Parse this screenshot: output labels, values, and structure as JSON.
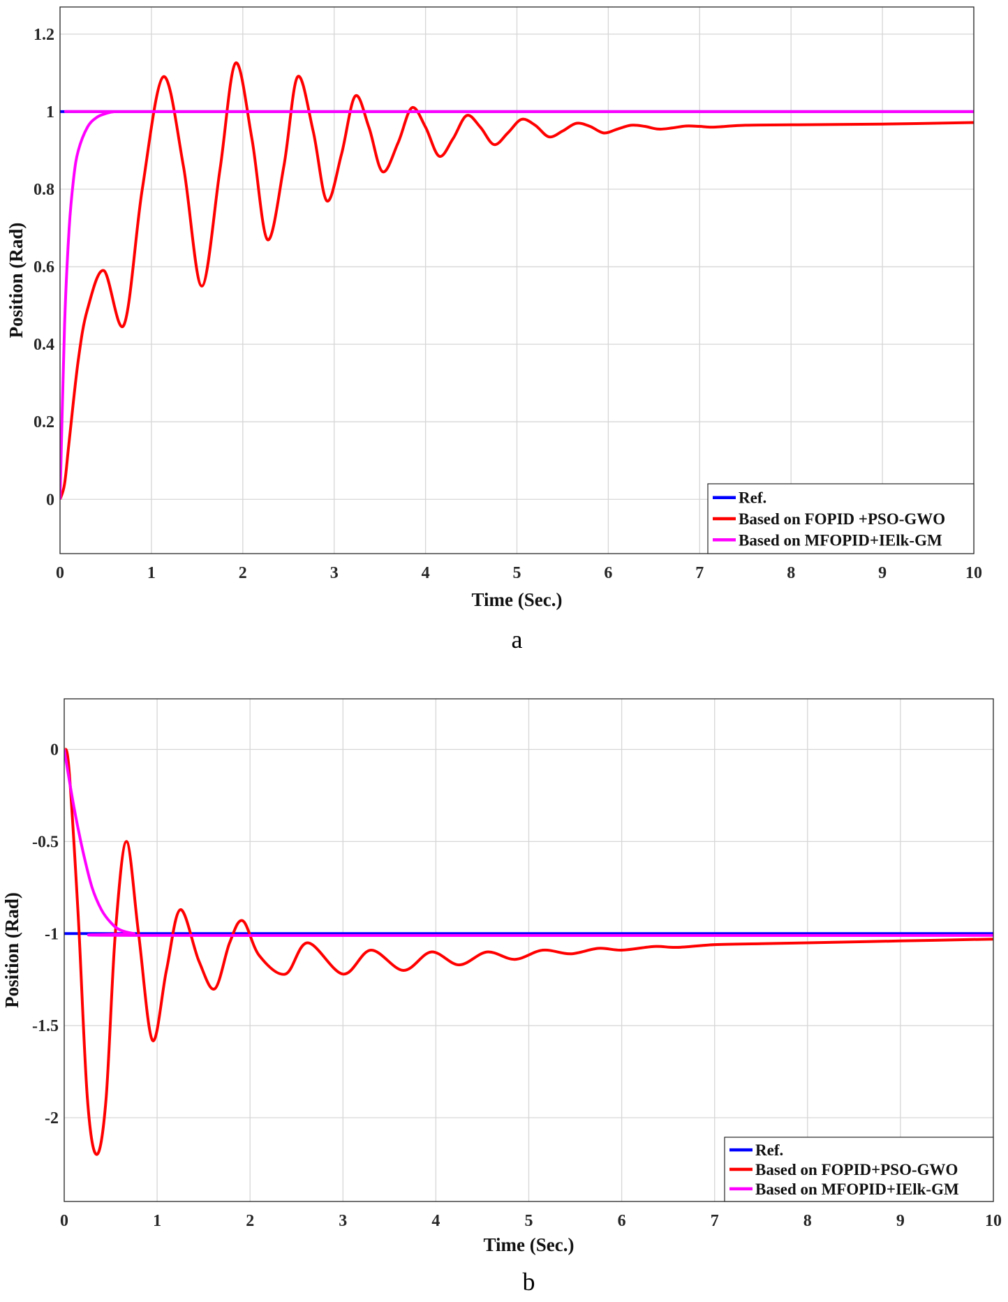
{
  "chart_data": [
    {
      "type": "line",
      "caption": "a",
      "xlabel": "Time (Sec.)",
      "ylabel": "Position (Rad)",
      "xlim": [
        0,
        10
      ],
      "ylim": [
        -0.14,
        1.27
      ],
      "xticks": [
        "0",
        "1",
        "2",
        "3",
        "4",
        "5",
        "6",
        "7",
        "8",
        "9",
        "10"
      ],
      "yticks": [
        "0",
        "0.2",
        "0.4",
        "0.6",
        "0.8",
        "1",
        "1.2"
      ],
      "grid": true,
      "legend_position": "bottom-right",
      "series": [
        {
          "name": "Ref.",
          "color": "#0000ff",
          "x": [
            0,
            10
          ],
          "y": [
            1,
            1
          ]
        },
        {
          "name": "Based on FOPID +PSO-GWO",
          "color": "#ff0000",
          "x": [
            0,
            0.05,
            0.1,
            0.2,
            0.3,
            0.48,
            0.7,
            0.9,
            1.13,
            1.35,
            1.55,
            1.75,
            1.92,
            2.1,
            2.27,
            2.45,
            2.6,
            2.77,
            2.92,
            3.08,
            3.23,
            3.38,
            3.53,
            3.7,
            3.85,
            4.0,
            4.15,
            4.3,
            4.45,
            4.6,
            4.75,
            4.9,
            5.05,
            5.2,
            5.35,
            5.5,
            5.65,
            5.8,
            5.95,
            6.1,
            6.25,
            6.4,
            6.55,
            6.7,
            6.85,
            7.0,
            7.15,
            7.5,
            8,
            9,
            10
          ],
          "y": [
            0,
            0.04,
            0.15,
            0.36,
            0.49,
            0.59,
            0.45,
            0.8,
            1.09,
            0.86,
            0.55,
            0.85,
            1.125,
            0.93,
            0.67,
            0.86,
            1.09,
            0.95,
            0.77,
            0.89,
            1.04,
            0.96,
            0.845,
            0.92,
            1.01,
            0.96,
            0.885,
            0.93,
            0.99,
            0.96,
            0.915,
            0.945,
            0.98,
            0.965,
            0.935,
            0.95,
            0.97,
            0.962,
            0.945,
            0.955,
            0.965,
            0.962,
            0.955,
            0.958,
            0.963,
            0.962,
            0.96,
            0.965,
            0.966,
            0.968,
            0.972
          ]
        },
        {
          "name": "Based on MFOPID+IElk-GM",
          "color": "#ff00ff",
          "x": [
            0,
            0.05,
            0.1,
            0.15,
            0.2,
            0.3,
            0.4,
            0.5,
            0.6,
            0.8,
            10
          ],
          "y": [
            0,
            0.45,
            0.7,
            0.83,
            0.9,
            0.96,
            0.985,
            0.995,
            1,
            1,
            1
          ]
        }
      ]
    },
    {
      "type": "line",
      "caption": "b",
      "xlabel": "Time (Sec.)",
      "ylabel": "Position (Rad)",
      "xlim": [
        0,
        10
      ],
      "ylim": [
        -2.455,
        0.275
      ],
      "xticks": [
        "0",
        "1",
        "2",
        "3",
        "4",
        "5",
        "6",
        "7",
        "8",
        "9",
        "10"
      ],
      "yticks": [
        "-2",
        "-1.5",
        "-1",
        "-0.5",
        "0"
      ],
      "grid": true,
      "legend_position": "bottom-right",
      "series": [
        {
          "name": "Ref.",
          "color": "#0000ff",
          "x": [
            0,
            10
          ],
          "y": [
            -1,
            -1
          ]
        },
        {
          "name": "Based on FOPID+PSO-GWO",
          "color": "#ff0000",
          "x": [
            0,
            0.05,
            0.15,
            0.25,
            0.35,
            0.45,
            0.55,
            0.67,
            0.8,
            0.95,
            1.1,
            1.25,
            1.45,
            1.62,
            1.78,
            1.92,
            2.1,
            2.38,
            2.62,
            3.0,
            3.3,
            3.65,
            3.95,
            4.25,
            4.55,
            4.85,
            5.15,
            5.45,
            5.75,
            6.0,
            6.35,
            6.6,
            7,
            7.5,
            8,
            9,
            10
          ],
          "y": [
            0,
            -0.1,
            -0.9,
            -1.9,
            -2.2,
            -1.9,
            -1.0,
            -0.5,
            -1.0,
            -1.58,
            -1.2,
            -0.87,
            -1.15,
            -1.3,
            -1.05,
            -0.93,
            -1.12,
            -1.22,
            -1.05,
            -1.22,
            -1.09,
            -1.2,
            -1.1,
            -1.17,
            -1.1,
            -1.14,
            -1.09,
            -1.11,
            -1.08,
            -1.09,
            -1.07,
            -1.075,
            -1.06,
            -1.055,
            -1.05,
            -1.04,
            -1.03
          ]
        },
        {
          "name": "Based on MFOPID+IElk-GM",
          "color": "#ff00ff",
          "x": [
            0,
            0.1,
            0.2,
            0.3,
            0.4,
            0.5,
            0.6,
            0.75,
            1,
            10
          ],
          "y": [
            0,
            -0.3,
            -0.55,
            -0.75,
            -0.87,
            -0.94,
            -0.98,
            -1.0,
            -1.01,
            -1.01
          ]
        }
      ]
    }
  ]
}
